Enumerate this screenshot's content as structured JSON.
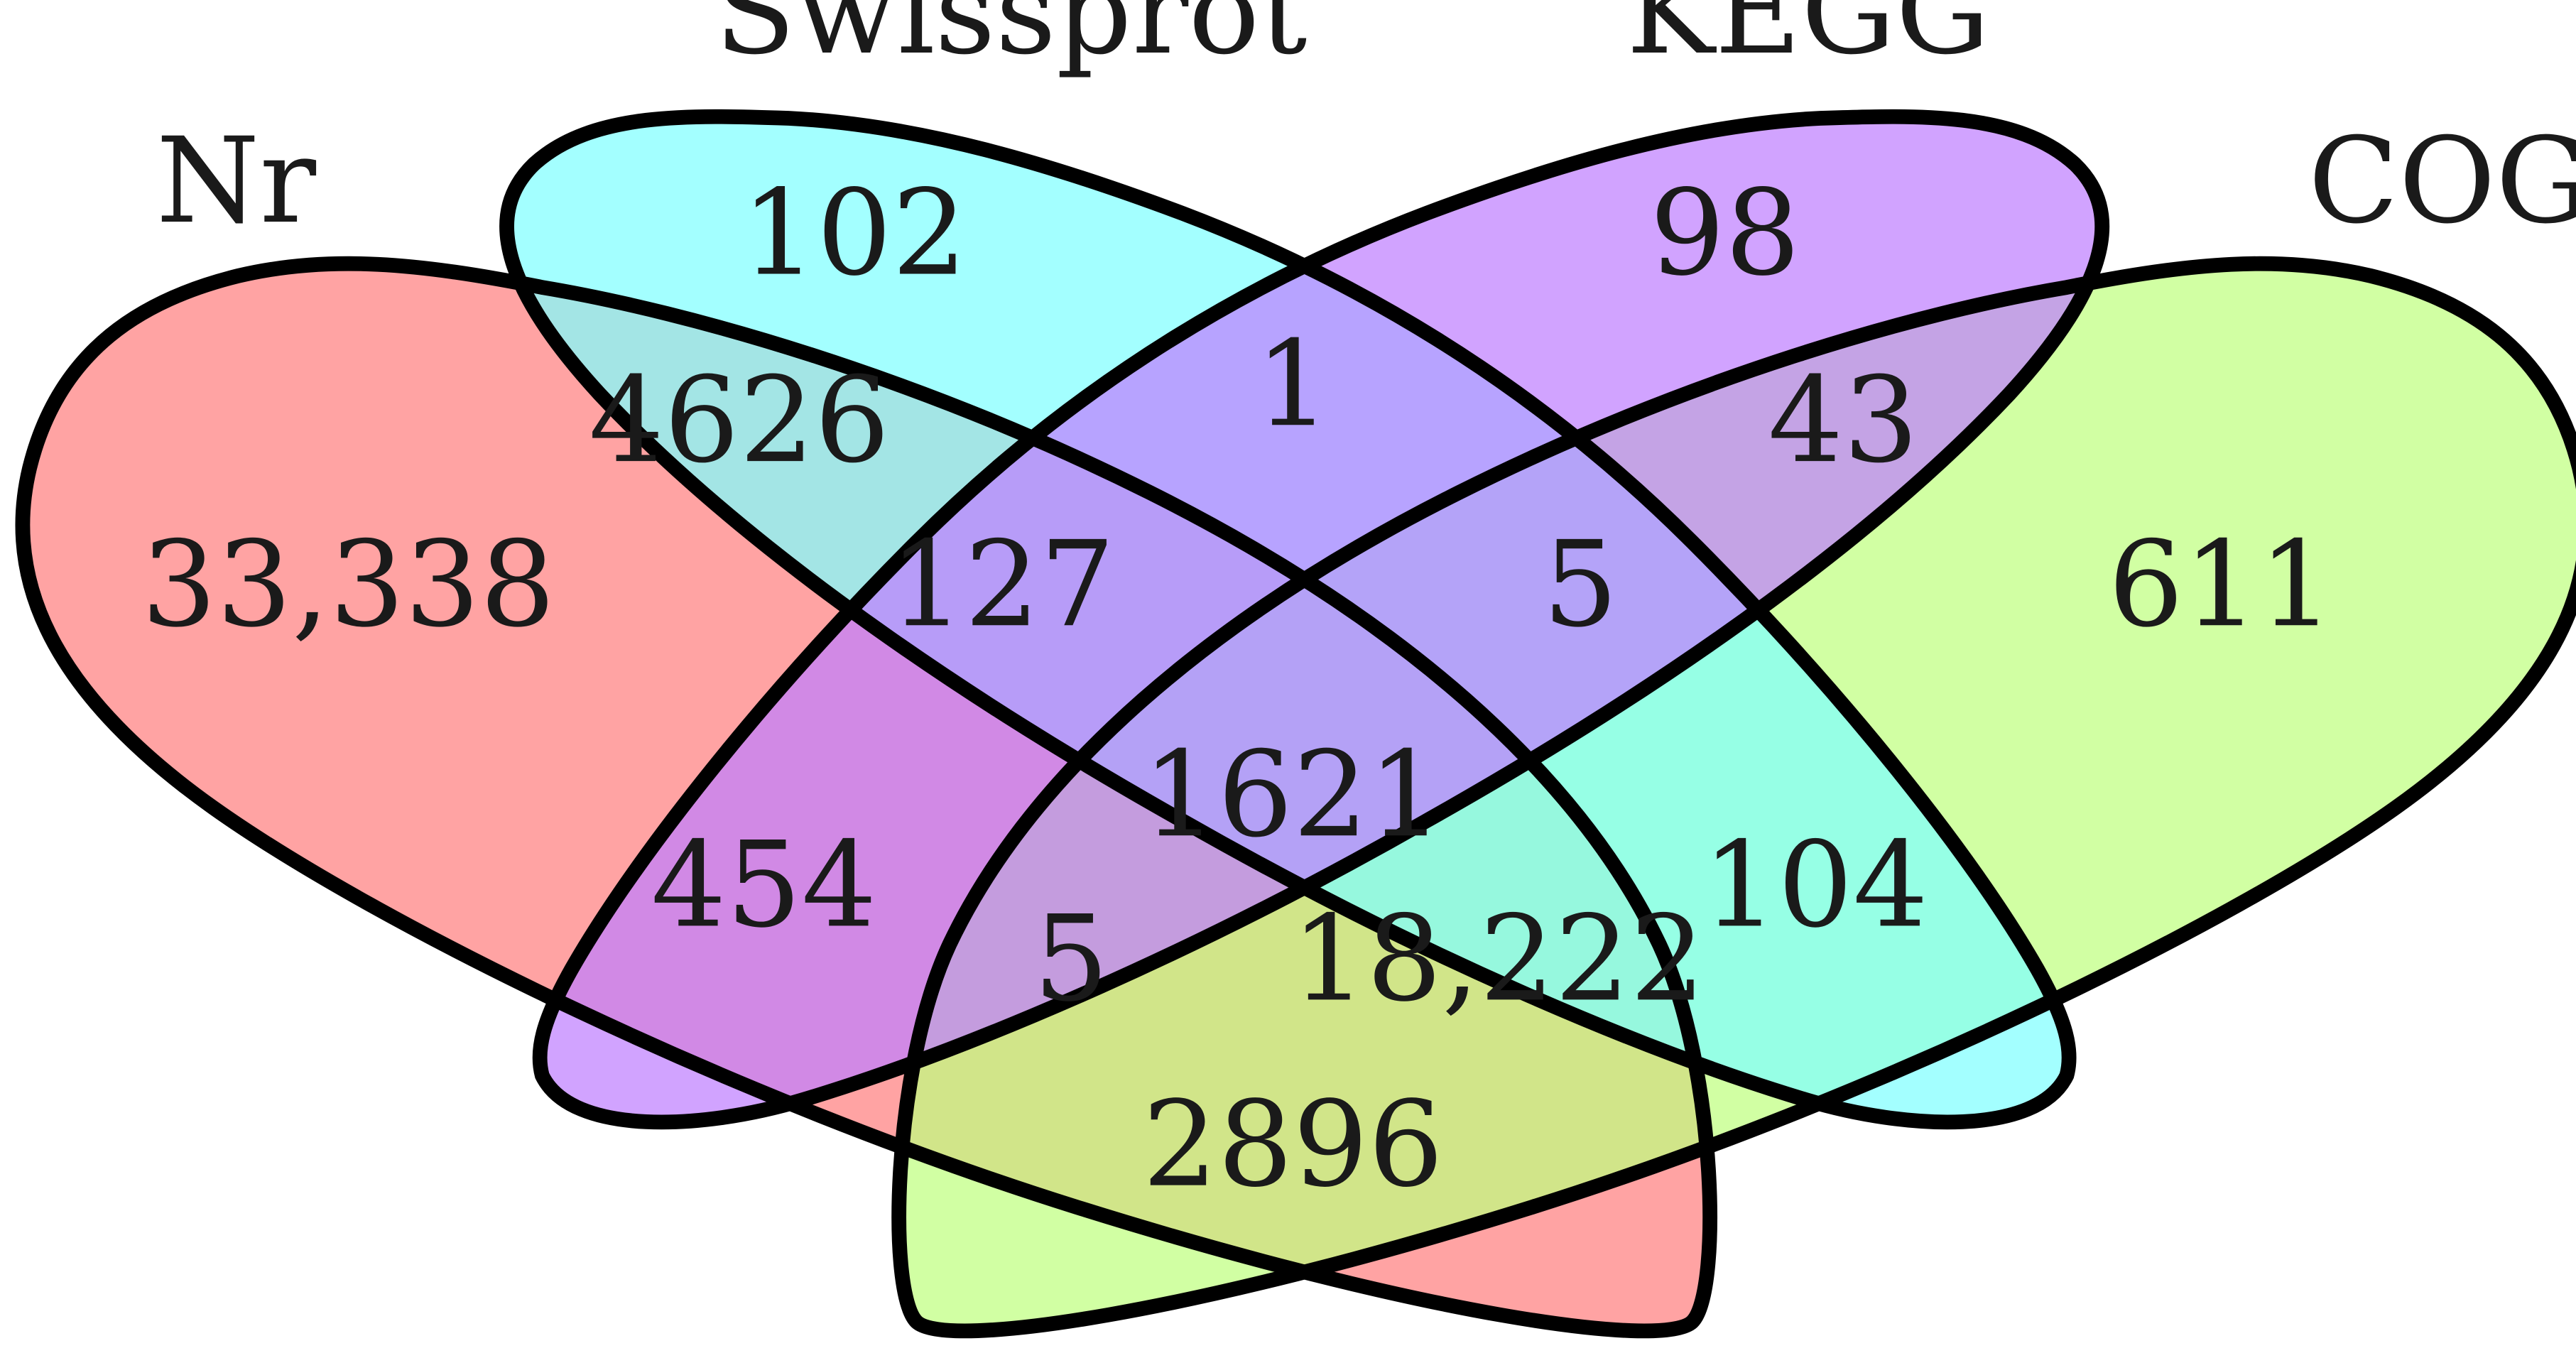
{
  "sets": [
    {
      "id": "nr",
      "label": "Nr",
      "color": "#ff7f7f"
    },
    {
      "id": "swissprot",
      "label": "Swissprot",
      "color": "#80ffff"
    },
    {
      "id": "kegg",
      "label": "KEGG",
      "color": "#bf80ff"
    },
    {
      "id": "cog",
      "label": "COG",
      "color": "#bfff80"
    }
  ],
  "regions": [
    {
      "sets": [
        "nr"
      ],
      "count": "33,338"
    },
    {
      "sets": [
        "swissprot"
      ],
      "count": "102"
    },
    {
      "sets": [
        "kegg"
      ],
      "count": "98"
    },
    {
      "sets": [
        "cog"
      ],
      "count": "611"
    },
    {
      "sets": [
        "nr",
        "swissprot"
      ],
      "count": "4626"
    },
    {
      "sets": [
        "swissprot",
        "kegg"
      ],
      "count": "1"
    },
    {
      "sets": [
        "kegg",
        "cog"
      ],
      "count": "43"
    },
    {
      "sets": [
        "nr",
        "swissprot",
        "kegg"
      ],
      "count": "127"
    },
    {
      "sets": [
        "swissprot",
        "kegg",
        "cog"
      ],
      "count": "5"
    },
    {
      "sets": [
        "nr",
        "swissprot",
        "kegg",
        "cog"
      ],
      "count": "1621"
    },
    {
      "sets": [
        "nr",
        "kegg"
      ],
      "count": "454"
    },
    {
      "sets": [
        "nr",
        "kegg",
        "cog"
      ],
      "count": "5"
    },
    {
      "sets": [
        "nr",
        "swissprot",
        "cog"
      ],
      "count": "18,222"
    },
    {
      "sets": [
        "swissprot",
        "cog"
      ],
      "count": "104"
    },
    {
      "sets": [
        "nr",
        "cog"
      ],
      "count": "2896"
    }
  ]
}
